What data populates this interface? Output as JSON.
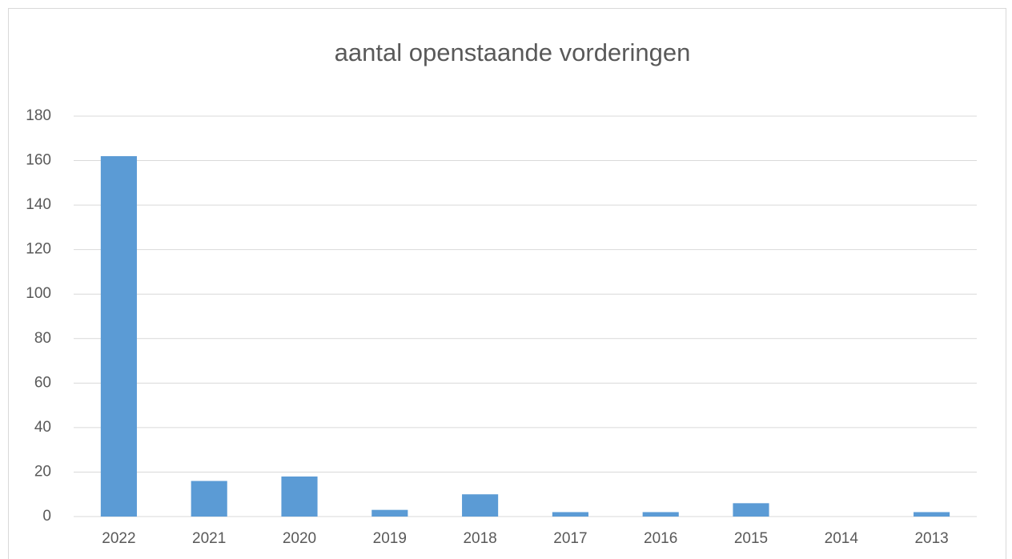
{
  "chart_data": {
    "type": "bar",
    "title": "aantal openstaande vorderingen",
    "categories": [
      "2022",
      "2021",
      "2020",
      "2019",
      "2018",
      "2017",
      "2016",
      "2015",
      "2014",
      "2013"
    ],
    "values": [
      162,
      16,
      18,
      3,
      10,
      2,
      2,
      6,
      0,
      2
    ],
    "color": "#5b9bd5",
    "ylim": [
      0,
      180
    ],
    "yticks": [
      0,
      20,
      40,
      60,
      80,
      100,
      120,
      140,
      160,
      180
    ],
    "grid": true
  }
}
